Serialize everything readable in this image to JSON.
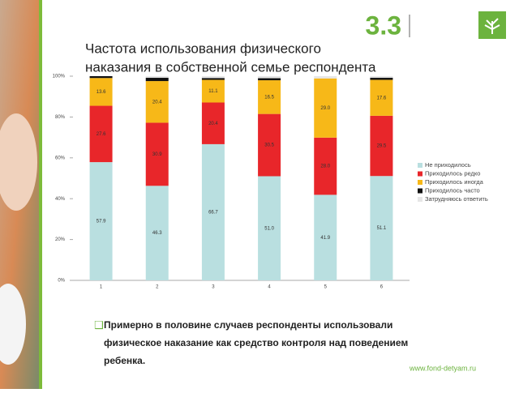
{
  "slide": {
    "number": "3.3",
    "bullet": [
      "Примерно в половине случаев респонденты использовали",
      "физическое наказание как средство контроля над поведением",
      "ребенка."
    ],
    "website": "www.fond-detyam.ru"
  },
  "chart_data": {
    "type": "stacked-bar",
    "title": [
      "Частота использования физического",
      "наказания в собственной семье респондента"
    ],
    "categories": [
      "1",
      "2",
      "3",
      "4",
      "5",
      "6"
    ],
    "series": [
      {
        "name": "Не приходилось",
        "color": "#b9dfe0",
        "values": [
          57.9,
          46.3,
          66.7,
          51.0,
          41.9,
          51.1
        ],
        "value_labels": [
          "57.9",
          "46.3",
          "66.7",
          "51.0",
          "41.9",
          "51.1"
        ]
      },
      {
        "name": "Приходилось редко",
        "color": "#e8262a",
        "values": [
          27.6,
          30.9,
          20.4,
          30.5,
          28.0,
          29.5
        ],
        "value_labels": [
          "27.6",
          "30.9",
          "20.4",
          "30.5",
          "28.0",
          "29.5"
        ]
      },
      {
        "name": "Приходилось иногда",
        "color": "#f7b818",
        "values": [
          13.6,
          20.4,
          11.1,
          16.5,
          29.0,
          17.6
        ],
        "value_labels": [
          "13.6",
          "20.4",
          "11.1",
          "16.5",
          "29.0",
          "17.6"
        ]
      },
      {
        "name": "Приходилось часто",
        "color": "#111111",
        "values": [
          0.9,
          1.6,
          0.9,
          1.0,
          0,
          1.0
        ]
      },
      {
        "name": "Затрудняюсь ответить",
        "color": "#e6e6e6",
        "values": [
          0,
          0.8,
          0.9,
          1.0,
          1.1,
          0.8
        ]
      }
    ],
    "ylim": [
      0,
      100
    ],
    "yticks": [
      {
        "value": 0,
        "label": "0%"
      },
      {
        "value": 20,
        "label": "20%"
      },
      {
        "value": 40,
        "label": "40%"
      },
      {
        "value": 60,
        "label": "60%"
      },
      {
        "value": 80,
        "label": "80%"
      },
      {
        "value": 100,
        "label": "100%"
      }
    ],
    "legend": "right"
  }
}
